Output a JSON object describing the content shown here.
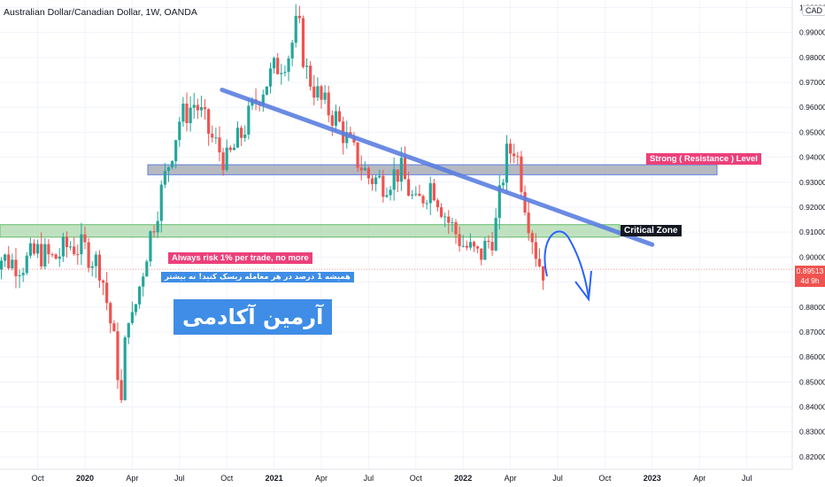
{
  "title": "Australian Dollar/Canadian Dollar, 1W, OANDA",
  "currency": "CAD",
  "annotations": {
    "resistance": "Strong ( Resistance ) Level",
    "critical": "Critical Zone",
    "risk_en": "Always risk 1% per trade, no more",
    "risk_fa": "همیشه 1 درصد در هر معامله ریسک کنید!  نه بیشتر",
    "brand": "آرمین آکادمی"
  },
  "price_label": {
    "value": "0.89513",
    "countdown": "4d 9h"
  },
  "colors": {
    "up": "#26a69a",
    "down": "#ef5350",
    "trendline": "#5b7fe0",
    "resistance_zone": "#9ea3ab",
    "critical_zone": "#a5d6a7",
    "label_pink": "#ec407a",
    "label_blue": "#3f8de6",
    "label_dark": "#131722",
    "arrow": "#2962ff"
  },
  "chart_data": {
    "type": "candlestick",
    "timeframe": "1W",
    "symbol": "AUDCAD",
    "y_axis": {
      "min": 0.815,
      "max": 1.003,
      "ticks": [
        "1.00000",
        "0.99000",
        "0.98000",
        "0.97000",
        "0.96000",
        "0.95000",
        "0.94000",
        "0.93000",
        "0.92000",
        "0.91000",
        "0.90000",
        "0.89000",
        "0.88000",
        "0.87000",
        "0.86000",
        "0.85000",
        "0.84000",
        "0.83000",
        "0.82000"
      ]
    },
    "x_axis": {
      "ticks": [
        {
          "label": "Oct",
          "m": -3
        },
        {
          "label": "2020",
          "m": 0
        },
        {
          "label": "Apr",
          "m": 3
        },
        {
          "label": "Jul",
          "m": 6
        },
        {
          "label": "Oct",
          "m": 9
        },
        {
          "label": "2021",
          "m": 12
        },
        {
          "label": "Apr",
          "m": 15
        },
        {
          "label": "Jul",
          "m": 18
        },
        {
          "label": "Oct",
          "m": 21
        },
        {
          "label": "2022",
          "m": 24
        },
        {
          "label": "Apr",
          "m": 27
        },
        {
          "label": "Jul",
          "m": 30
        },
        {
          "label": "Oct",
          "m": 33
        },
        {
          "label": "2023",
          "m": 36
        },
        {
          "label": "Apr",
          "m": 39
        },
        {
          "label": "Jul",
          "m": 42
        }
      ]
    },
    "ohlc_anchors": [
      {
        "m": -6,
        "c": 0.901
      },
      {
        "m": -5,
        "c": 0.899
      },
      {
        "m": -4,
        "c": 0.897
      },
      {
        "m": -3,
        "c": 0.902
      },
      {
        "m": -2,
        "c": 0.899
      },
      {
        "m": -1,
        "c": 0.905
      },
      {
        "m": 0,
        "c": 0.903
      },
      {
        "m": 1,
        "c": 0.896
      },
      {
        "m": 2,
        "c": 0.86
      },
      {
        "m": 2.3,
        "c": 0.84
      },
      {
        "m": 2.7,
        "c": 0.88
      },
      {
        "m": 3,
        "c": 0.874
      },
      {
        "m": 4,
        "c": 0.905
      },
      {
        "m": 5,
        "c": 0.93
      },
      {
        "m": 6,
        "c": 0.955
      },
      {
        "m": 7,
        "c": 0.962
      },
      {
        "m": 8,
        "c": 0.948
      },
      {
        "m": 9,
        "c": 0.938
      },
      {
        "m": 10,
        "c": 0.95
      },
      {
        "m": 11,
        "c": 0.965
      },
      {
        "m": 12,
        "c": 0.975
      },
      {
        "m": 13,
        "c": 0.982
      },
      {
        "m": 13.5,
        "c": 0.995
      },
      {
        "m": 14,
        "c": 0.975
      },
      {
        "m": 15,
        "c": 0.962
      },
      {
        "m": 16,
        "c": 0.955
      },
      {
        "m": 17,
        "c": 0.942
      },
      {
        "m": 18,
        "c": 0.932
      },
      {
        "m": 19,
        "c": 0.93
      },
      {
        "m": 20,
        "c": 0.935
      },
      {
        "m": 21,
        "c": 0.92
      },
      {
        "m": 22,
        "c": 0.93
      },
      {
        "m": 23,
        "c": 0.915
      },
      {
        "m": 24,
        "c": 0.905
      },
      {
        "m": 25,
        "c": 0.9
      },
      {
        "m": 26,
        "c": 0.91
      },
      {
        "m": 26.7,
        "c": 0.94
      },
      {
        "m": 27.3,
        "c": 0.945
      },
      {
        "m": 28,
        "c": 0.92
      },
      {
        "m": 28.7,
        "c": 0.9
      },
      {
        "m": 29,
        "c": 0.895
      }
    ],
    "trendline": {
      "start": {
        "m": 8.7,
        "p": 0.967
      },
      "end": {
        "m": 36,
        "p": 0.905
      }
    },
    "zones": [
      {
        "name": "Strong ( Resistance ) Level",
        "from": 0.933,
        "to": 0.937
      },
      {
        "name": "Critical Zone",
        "from": 0.908,
        "to": 0.913
      }
    ]
  }
}
